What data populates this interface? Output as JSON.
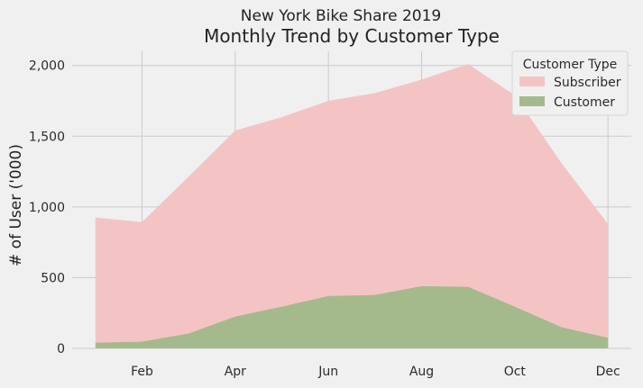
{
  "chart_data": {
    "type": "area",
    "title": "New York Bike Share 2019",
    "subtitle": "Monthly Trend by Customer Type",
    "ylabel": "# of User ('000)",
    "xlabel": "",
    "x": [
      1,
      2,
      3,
      4,
      5,
      6,
      7,
      8,
      9,
      10,
      11,
      12
    ],
    "x_ticks": [
      2,
      4,
      6,
      8,
      10,
      12
    ],
    "x_tick_labels": [
      "Feb",
      "Apr",
      "Jun",
      "Aug",
      "Oct",
      "Dec"
    ],
    "ylim": [
      0,
      2100
    ],
    "y_ticks": [
      0,
      500,
      1000,
      1500,
      2000
    ],
    "y_tick_labels": [
      "0",
      "500",
      "1,000",
      "1,500",
      "2,000"
    ],
    "grid": true,
    "legend": {
      "title": "Customer Type",
      "position": "top-right"
    },
    "series": [
      {
        "name": "Subscriber",
        "color": "#f4c4c4",
        "values": [
          925,
          893,
          1215,
          1540,
          1635,
          1750,
          1805,
          1900,
          2010,
          1790,
          1310,
          880
        ]
      },
      {
        "name": "Customer",
        "color": "#a5ba8c",
        "values": [
          40,
          48,
          105,
          225,
          295,
          370,
          378,
          440,
          435,
          295,
          150,
          75
        ]
      }
    ]
  }
}
